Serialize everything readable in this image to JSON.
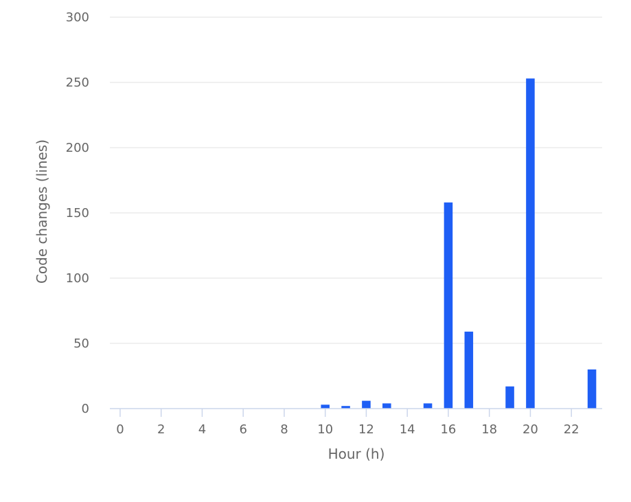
{
  "chart_data": {
    "type": "bar",
    "title": "",
    "xlabel": "Hour (h)",
    "ylabel": "Code changes (lines)",
    "x": [
      0,
      1,
      2,
      3,
      4,
      5,
      6,
      7,
      8,
      9,
      10,
      11,
      12,
      13,
      14,
      15,
      16,
      17,
      18,
      19,
      20,
      21,
      22,
      23
    ],
    "values": [
      0,
      0,
      0,
      0,
      0,
      0,
      0,
      0,
      0,
      0,
      3,
      2,
      6,
      4,
      0,
      4,
      158,
      59,
      0,
      17,
      253,
      0,
      0,
      30
    ],
    "x_tick_labels": [
      "0",
      "2",
      "4",
      "6",
      "8",
      "10",
      "12",
      "14",
      "16",
      "18",
      "20",
      "22"
    ],
    "x_tick_values": [
      0,
      2,
      4,
      6,
      8,
      10,
      12,
      14,
      16,
      18,
      20,
      22
    ],
    "y_tick_labels": [
      "0",
      "50",
      "100",
      "150",
      "200",
      "250",
      "300"
    ],
    "y_tick_values": [
      0,
      50,
      100,
      150,
      200,
      250,
      300
    ],
    "ylim": [
      0,
      300
    ],
    "xlim": [
      -0.5,
      23.5
    ],
    "grid": "horizontal",
    "legend": "none",
    "colors": {
      "bar": "#1e5ef5",
      "grid": "#e6e6e6",
      "axis": "#ccd6eb",
      "text": "#666666"
    }
  }
}
